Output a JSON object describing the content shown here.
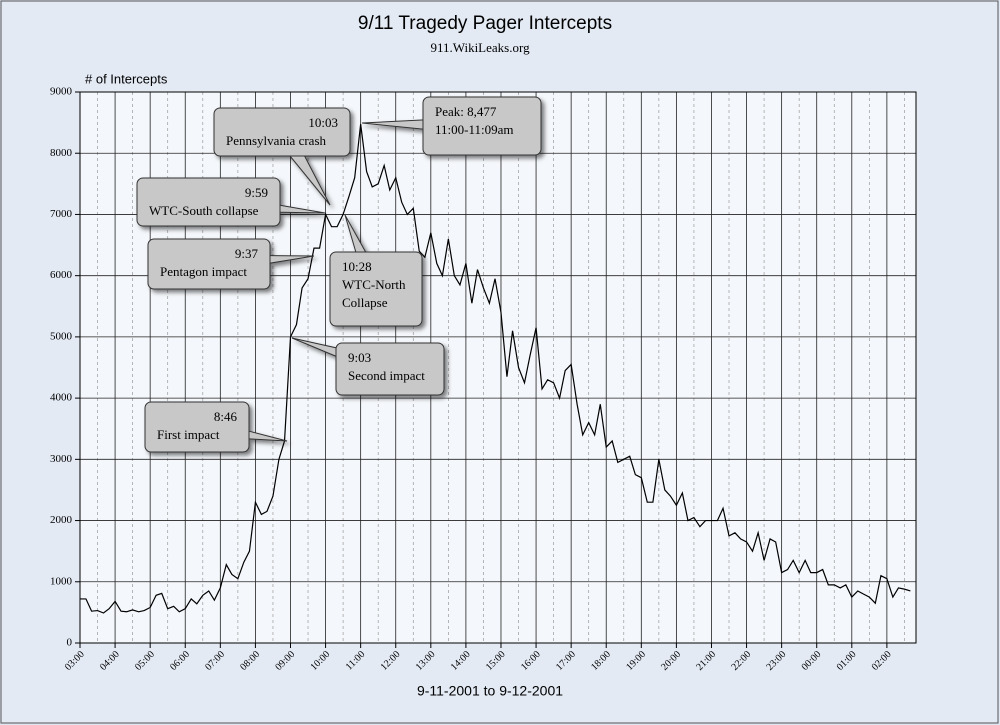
{
  "chart_data": {
    "type": "line",
    "title": "9/11 Tragedy Pager Intercepts",
    "subtitle": "911.WikiLeaks.org",
    "y_label": "# of Intercepts",
    "x_label": "9-11-2001 to 9-12-2001",
    "color": "#000000",
    "grid": true,
    "x": [
      3,
      3.17,
      3.33,
      3.5,
      3.67,
      3.83,
      4,
      4.17,
      4.33,
      4.5,
      4.67,
      4.83,
      5,
      5.17,
      5.33,
      5.5,
      5.67,
      5.83,
      6,
      6.17,
      6.33,
      6.5,
      6.67,
      6.83,
      7,
      7.17,
      7.33,
      7.5,
      7.67,
      7.83,
      8,
      8.17,
      8.33,
      8.5,
      8.67,
      8.83,
      9,
      9.17,
      9.33,
      9.5,
      9.67,
      9.83,
      10,
      10.17,
      10.33,
      10.5,
      10.67,
      10.83,
      11,
      11.17,
      11.33,
      11.5,
      11.67,
      11.83,
      12,
      12.17,
      12.33,
      12.5,
      12.67,
      12.83,
      13,
      13.17,
      13.33,
      13.5,
      13.67,
      13.83,
      14,
      14.17,
      14.33,
      14.5,
      14.67,
      14.83,
      15,
      15.17,
      15.33,
      15.5,
      15.67,
      15.83,
      16,
      16.17,
      16.33,
      16.5,
      16.67,
      16.83,
      17,
      17.17,
      17.33,
      17.5,
      17.67,
      17.83,
      18,
      18.17,
      18.33,
      18.5,
      18.67,
      18.83,
      19,
      19.17,
      19.33,
      19.5,
      19.67,
      19.83,
      20,
      20.17,
      20.33,
      20.5,
      20.67,
      20.83,
      21,
      21.17,
      21.33,
      21.5,
      21.67,
      21.83,
      22,
      22.17,
      22.33,
      22.5,
      22.67,
      22.83,
      23,
      23.17,
      23.33,
      23.5,
      23.67,
      23.83,
      24,
      24.17,
      24.33,
      24.5,
      24.67,
      24.83,
      25,
      25.17,
      25.33,
      25.5,
      25.67,
      25.83,
      26,
      26.17,
      26.33,
      26.5,
      26.67
    ],
    "values": [
      720,
      720,
      520,
      530,
      490,
      560,
      680,
      520,
      510,
      540,
      510,
      530,
      580,
      780,
      810,
      560,
      600,
      510,
      560,
      720,
      640,
      780,
      850,
      700,
      900,
      1280,
      1120,
      1050,
      1320,
      1500,
      2300,
      2100,
      2150,
      2400,
      3000,
      3300,
      5000,
      5200,
      5800,
      5950,
      6450,
      6450,
      7000,
      6800,
      6800,
      7000,
      7300,
      7600,
      8477,
      7700,
      7450,
      7500,
      7800,
      7400,
      7600,
      7200,
      7000,
      7100,
      6400,
      6300,
      6700,
      6200,
      6000,
      6600,
      6000,
      5850,
      6200,
      5550,
      6100,
      5800,
      5550,
      5950,
      5400,
      4350,
      5100,
      4500,
      4250,
      4700,
      5150,
      4150,
      4300,
      4250,
      4000,
      4450,
      4550,
      3900,
      3400,
      3600,
      3400,
      3900,
      3200,
      3300,
      2950,
      3000,
      3050,
      2750,
      2700,
      2300,
      2300,
      3000,
      2500,
      2400,
      2250,
      2450,
      2000,
      2050,
      1900,
      2000,
      2000,
      2000,
      2200,
      1750,
      1800,
      1700,
      1650,
      1500,
      1800,
      1350,
      1700,
      1650,
      1150,
      1200,
      1350,
      1150,
      1350,
      1150,
      1150,
      1200,
      950,
      950,
      900,
      950,
      750,
      850,
      800,
      750,
      650,
      1100,
      1050,
      750,
      900,
      880,
      850
    ],
    "xlim": [
      3,
      26.83
    ],
    "ylim": [
      0,
      9000
    ],
    "yticks": [
      0,
      1000,
      2000,
      3000,
      4000,
      5000,
      6000,
      7000,
      8000,
      9000
    ],
    "xticks": [
      {
        "value": 3,
        "label": "03:00"
      },
      {
        "value": 4,
        "label": "04:00"
      },
      {
        "value": 5,
        "label": "05:00"
      },
      {
        "value": 6,
        "label": "06:00"
      },
      {
        "value": 7,
        "label": "07:00"
      },
      {
        "value": 8,
        "label": "08:00"
      },
      {
        "value": 9,
        "label": "09:00"
      },
      {
        "value": 10,
        "label": "10:00"
      },
      {
        "value": 11,
        "label": "11:00"
      },
      {
        "value": 12,
        "label": "12:00"
      },
      {
        "value": 13,
        "label": "13:00"
      },
      {
        "value": 14,
        "label": "14:00"
      },
      {
        "value": 15,
        "label": "15:00"
      },
      {
        "value": 16,
        "label": "16:00"
      },
      {
        "value": 17,
        "label": "17:00"
      },
      {
        "value": 18,
        "label": "18:00"
      },
      {
        "value": 19,
        "label": "19:00"
      },
      {
        "value": 20,
        "label": "20:00"
      },
      {
        "value": 21,
        "label": "21:00"
      },
      {
        "value": 22,
        "label": "22:00"
      },
      {
        "value": 23,
        "label": "23:00"
      },
      {
        "value": 24,
        "label": "00:00"
      },
      {
        "value": 25,
        "label": "01:00"
      },
      {
        "value": 26,
        "label": "02:00"
      }
    ],
    "annotations": [
      [
        "10:03",
        "Pennsylvania crash"
      ],
      [
        "Peak: 8,477",
        "11:00-11:09am"
      ],
      [
        "9:59",
        "WTC-South collapse"
      ],
      [
        "9:37",
        "Pentagon impact"
      ],
      [
        "10:28",
        "WTC-North",
        "Collapse"
      ],
      [
        "9:03",
        "Second impact"
      ],
      [
        "8:46",
        "First impact"
      ]
    ]
  }
}
